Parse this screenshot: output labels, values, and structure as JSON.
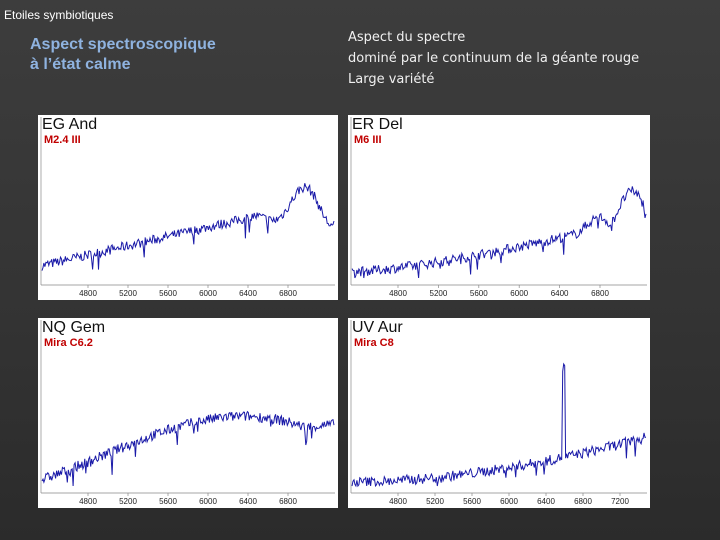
{
  "header": {
    "title": "Etoiles symbiotiques"
  },
  "left_heading": [
    "Aspect spectroscopique",
    "à l’état calme"
  ],
  "right_text": [
    "Aspect du spectre",
    "dominé par le continuum de la géante rouge",
    "Large variété"
  ],
  "panels": [
    {
      "name": "EG And",
      "spectral_type": "M2.4 III",
      "axis_labels": [
        4800,
        5200,
        5600,
        6000,
        6400,
        6800
      ]
    },
    {
      "name": "ER Del",
      "spectral_type": "M6  III",
      "axis_labels": [
        4800,
        5200,
        5600,
        6000,
        6400,
        6800
      ]
    },
    {
      "name": "NQ Gem",
      "spectral_type": "Mira C6.2",
      "axis_labels": [
        4800,
        5200,
        5600,
        6000,
        6400,
        6800
      ]
    },
    {
      "name": "UV Aur",
      "spectral_type": "Mira C8",
      "axis_labels": [
        4800,
        5200,
        5600,
        6000,
        6400,
        6800,
        7200
      ]
    }
  ]
}
